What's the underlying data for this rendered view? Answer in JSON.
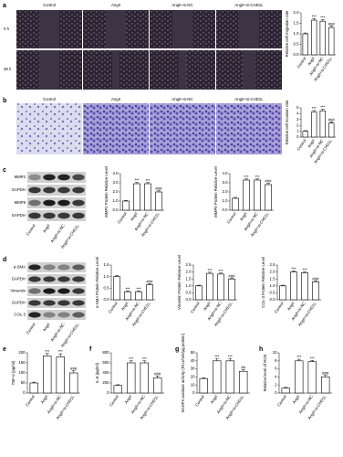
{
  "panel_letters": [
    "a",
    "b",
    "c",
    "d",
    "e",
    "f",
    "g",
    "h"
  ],
  "images": {
    "columns": [
      "Control",
      "AngII",
      "AngII+si-NC",
      "AngII+si-CHD1L"
    ],
    "rows": [
      "0 h",
      "48 h"
    ]
  },
  "blots": [
    {
      "bands": [
        "MMP2",
        "GAPDH",
        "MMP9",
        "GAPDH"
      ],
      "lanes": [
        "Control",
        "AngII",
        "AngII+si-NC",
        "AngII+si-CHD1L"
      ]
    },
    {
      "bands": [
        "α-SMA",
        "GAPDH",
        "Vimentin",
        "GAPDH",
        "COL-3"
      ],
      "lanes": [
        "Control",
        "AngII",
        "AngII+si-NC",
        "AngII+si-CHD1L"
      ]
    }
  ],
  "chart_data": [
    {
      "type": "bar",
      "ylabel": "Relative cell migration rate",
      "categories": [
        "Control",
        "AngII",
        "AngII+si-NC",
        "AngII+si-CHD1L"
      ],
      "values": [
        1.0,
        1.65,
        1.6,
        1.3
      ],
      "errors": [
        0.04,
        0.08,
        0.07,
        0.06
      ],
      "annotations": [
        null,
        "***",
        "***",
        "###"
      ],
      "color": "#ffffff",
      "edgecolor": "#000000",
      "ylim": [
        0,
        2.0
      ],
      "yticks": [
        {
          "value": 0,
          "label": "0.0"
        },
        {
          "value": 0.5,
          "label": "0.5"
        },
        {
          "value": 1.0,
          "label": "1.0"
        },
        {
          "value": 1.5,
          "label": "1.5"
        },
        {
          "value": 2.0,
          "label": "2.0"
        }
      ]
    },
    {
      "type": "bar",
      "ylabel": "Relative cell invasion rate",
      "categories": [
        "Control",
        "AngII",
        "AngII+si-NC",
        "AngII+si-CHD1L"
      ],
      "values": [
        1.0,
        4.3,
        4.5,
        2.4
      ],
      "errors": [
        0.1,
        0.25,
        0.25,
        0.2
      ],
      "annotations": [
        null,
        "***",
        "***",
        "###"
      ],
      "color": "#ffffff",
      "edgecolor": "#000000",
      "ylim": [
        0,
        5
      ],
      "yticks": [
        0,
        1,
        2,
        3,
        4,
        5
      ]
    },
    {
      "type": "bar",
      "ylabel": "MMP2 Protein Relative Level",
      "categories": [
        "Control",
        "AngII",
        "AngII+si-NC",
        "AngII+si-CHD1L"
      ],
      "values": [
        1.0,
        2.9,
        2.9,
        2.0
      ],
      "errors": [
        0.08,
        0.15,
        0.12,
        0.12
      ],
      "annotations": [
        null,
        "***",
        "***",
        "###"
      ],
      "color": "#ffffff",
      "edgecolor": "#000000",
      "ylim": [
        0,
        4.0
      ],
      "yticks": [
        {
          "value": 0,
          "label": "0.0"
        },
        {
          "value": 1,
          "label": "1.0"
        },
        {
          "value": 2,
          "label": "2.0"
        },
        {
          "value": 3,
          "label": "3.0"
        },
        {
          "value": 4,
          "label": "4.0"
        }
      ]
    },
    {
      "type": "bar",
      "ylabel": "MMP9 Protein Relative Level",
      "categories": [
        "Control",
        "AngII",
        "AngII+si-NC",
        "AngII+si-CHD1L"
      ],
      "values": [
        1.3,
        3.3,
        3.3,
        2.8
      ],
      "errors": [
        0.1,
        0.12,
        0.12,
        0.15
      ],
      "annotations": [
        null,
        "***",
        "***",
        "###"
      ],
      "color": "#ffffff",
      "edgecolor": "#000000",
      "ylim": [
        0,
        4.0
      ],
      "yticks": [
        {
          "value": 0,
          "label": "0.0"
        },
        {
          "value": 1,
          "label": "1.0"
        },
        {
          "value": 2,
          "label": "2.0"
        },
        {
          "value": 3,
          "label": "3.0"
        },
        {
          "value": 4,
          "label": "4.0"
        }
      ]
    },
    {
      "type": "bar",
      "ylabel": "α-SMA Protein Relative Level",
      "categories": [
        "Control",
        "AngII",
        "AngII+si-NC",
        "AngII+si-CHD1L"
      ],
      "values": [
        1.0,
        0.35,
        0.35,
        0.65
      ],
      "errors": [
        0.05,
        0.04,
        0.04,
        0.05
      ],
      "annotations": [
        null,
        "***",
        "***",
        "###"
      ],
      "color": "#ffffff",
      "edgecolor": "#000000",
      "ylim": [
        0,
        1.5
      ],
      "yticks": [
        {
          "value": 0,
          "label": "0.0"
        },
        {
          "value": 0.5,
          "label": "0.5"
        },
        {
          "value": 1.0,
          "label": "1.0"
        },
        {
          "value": 1.5,
          "label": "1.5"
        }
      ]
    },
    {
      "type": "bar",
      "ylabel": "Vimentin Protein Relative Level",
      "categories": [
        "Control",
        "AngII",
        "AngII+si-NC",
        "AngII+si-CHD1L"
      ],
      "values": [
        1.0,
        1.9,
        1.85,
        1.5
      ],
      "errors": [
        0.05,
        0.08,
        0.08,
        0.07
      ],
      "annotations": [
        null,
        "***",
        "***",
        "###"
      ],
      "color": "#ffffff",
      "edgecolor": "#000000",
      "ylim": [
        0,
        2.5
      ],
      "yticks": [
        {
          "value": 0,
          "label": "0.0"
        },
        {
          "value": 0.5,
          "label": "0.5"
        },
        {
          "value": 1.0,
          "label": "1.0"
        },
        {
          "value": 1.5,
          "label": "1.5"
        },
        {
          "value": 2.0,
          "label": "2.0"
        },
        {
          "value": 2.5,
          "label": "2.5"
        }
      ]
    },
    {
      "type": "bar",
      "ylabel": "COL-3 Protein Relative Level",
      "categories": [
        "Control",
        "AngII",
        "AngII+si-NC",
        "AngII+si-CHD1L"
      ],
      "values": [
        1.0,
        2.0,
        1.95,
        1.3
      ],
      "errors": [
        0.05,
        0.08,
        0.08,
        0.07
      ],
      "annotations": [
        null,
        "***",
        "***",
        "###"
      ],
      "color": "#ffffff",
      "edgecolor": "#000000",
      "ylim": [
        0,
        2.5
      ],
      "yticks": [
        {
          "value": 0,
          "label": "0.0"
        },
        {
          "value": 0.5,
          "label": "0.5"
        },
        {
          "value": 1.0,
          "label": "1.0"
        },
        {
          "value": 1.5,
          "label": "1.5"
        },
        {
          "value": 2.0,
          "label": "2.0"
        },
        {
          "value": 2.5,
          "label": "2.5"
        }
      ]
    },
    {
      "type": "bar",
      "ylabel": "TNF-α (pg/ml)",
      "categories": [
        "Control",
        "AngII",
        "AngII+si-NC",
        "AngII+si-CHD1L"
      ],
      "values": [
        50,
        185,
        180,
        100
      ],
      "errors": [
        4,
        12,
        15,
        10
      ],
      "annotations": [
        null,
        "***",
        "***",
        "###"
      ],
      "color": "#ffffff",
      "edgecolor": "#000000",
      "ylim": [
        0,
        200
      ],
      "yticks": [
        0,
        50,
        100,
        150,
        200
      ]
    },
    {
      "type": "bar",
      "ylabel": "IL-6 (pg/ml)",
      "categories": [
        "Control",
        "AngII",
        "AngII+si-NC",
        "AngII+si-CHD1L"
      ],
      "values": [
        150,
        600,
        600,
        300
      ],
      "errors": [
        15,
        40,
        40,
        40
      ],
      "annotations": [
        null,
        "***",
        "***",
        "###"
      ],
      "color": "#ffffff",
      "edgecolor": "#000000",
      "ylim": [
        0,
        800
      ],
      "yticks": [
        0,
        200,
        400,
        600,
        800
      ]
    },
    {
      "type": "bar",
      "ylabel": "NADPH oxidase activity (RLU/min/µg protein)",
      "categories": [
        "Control",
        "AngII",
        "AngII+si-NC",
        "AngII+si-CHD1L"
      ],
      "values": [
        18,
        40,
        40,
        27
      ],
      "errors": [
        1,
        3,
        3,
        2
      ],
      "annotations": [
        null,
        "***",
        "***",
        "##"
      ],
      "color": "#ffffff",
      "edgecolor": "#000000",
      "ylim": [
        0,
        50
      ],
      "yticks": [
        0,
        10,
        20,
        30,
        40,
        50
      ]
    },
    {
      "type": "bar",
      "ylabel": "Relative level of ROS",
      "categories": [
        "Control",
        "AngII",
        "AngII+si-NC",
        "AngII+si-CHD1L"
      ],
      "values": [
        1.2,
        8.0,
        7.8,
        4.0
      ],
      "errors": [
        0.2,
        0.4,
        0.3,
        0.4
      ],
      "annotations": [
        null,
        "***",
        "***",
        "###"
      ],
      "color": "#ffffff",
      "edgecolor": "#000000",
      "ylim": [
        0,
        10
      ],
      "yticks": [
        0,
        2,
        4,
        6,
        8,
        10
      ]
    }
  ]
}
